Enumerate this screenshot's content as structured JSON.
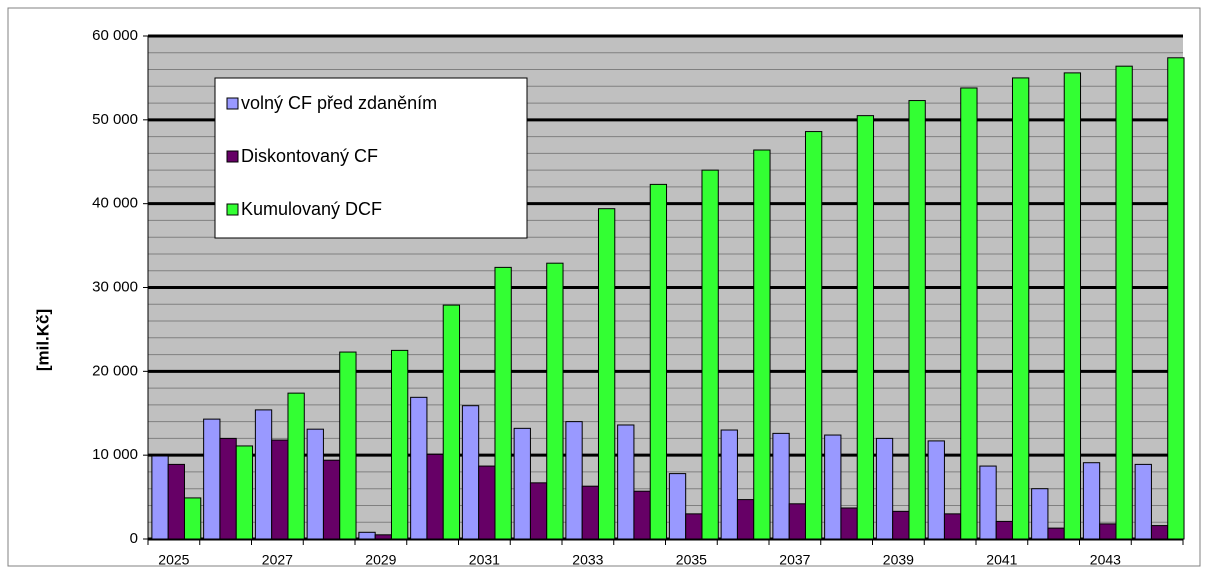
{
  "chart_data": {
    "type": "bar",
    "y_label": "[mil.Kč]",
    "categories": [
      "2025",
      null,
      "2027",
      null,
      "2029",
      null,
      "2031",
      null,
      "2033",
      null,
      "2035",
      null,
      "2037",
      null,
      "2039",
      null,
      "2041",
      null,
      "2043",
      null
    ],
    "series": [
      {
        "name": "volný CF před zdaněním",
        "color": "#9999ff",
        "values": [
          9900,
          14300,
          15400,
          13100,
          800,
          16900,
          15900,
          13200,
          14000,
          13600,
          7800,
          13000,
          12600,
          12400,
          12000,
          11700,
          8700,
          6000,
          9100,
          8900
        ]
      },
      {
        "name": "Diskontovaný CF",
        "color": "#660066",
        "values": [
          8900,
          12000,
          11800,
          9400,
          500,
          10100,
          8700,
          6700,
          6300,
          5700,
          3000,
          4700,
          4200,
          3700,
          3300,
          3000,
          2100,
          1300,
          1800,
          1600
        ]
      },
      {
        "name": "Kumulovaný DCF",
        "color": "#33ff33",
        "values": [
          4900,
          11100,
          17400,
          22300,
          22500,
          27900,
          32400,
          32900,
          39400,
          42300,
          44000,
          46400,
          48600,
          50500,
          52300,
          53800,
          55000,
          55600,
          56400,
          57400
        ]
      }
    ],
    "ylim": [
      0,
      60000
    ],
    "yticks": [
      {
        "value": 0,
        "label": "0"
      },
      {
        "value": 10000,
        "label": "10 000"
      },
      {
        "value": 20000,
        "label": "20 000"
      },
      {
        "value": 30000,
        "label": "30 000"
      },
      {
        "value": 40000,
        "label": "40 000"
      },
      {
        "value": 50000,
        "label": "50 000"
      },
      {
        "value": 60000,
        "label": "60 000"
      }
    ],
    "minor_yticks": [
      2000,
      4000,
      6000,
      8000,
      12000,
      14000,
      16000,
      18000,
      22000,
      24000,
      26000,
      28000,
      32000,
      34000,
      36000,
      38000,
      42000,
      44000,
      46000,
      48000,
      52000,
      54000,
      56000,
      58000
    ],
    "grid": true,
    "plot_background": "#c0c0c0"
  }
}
